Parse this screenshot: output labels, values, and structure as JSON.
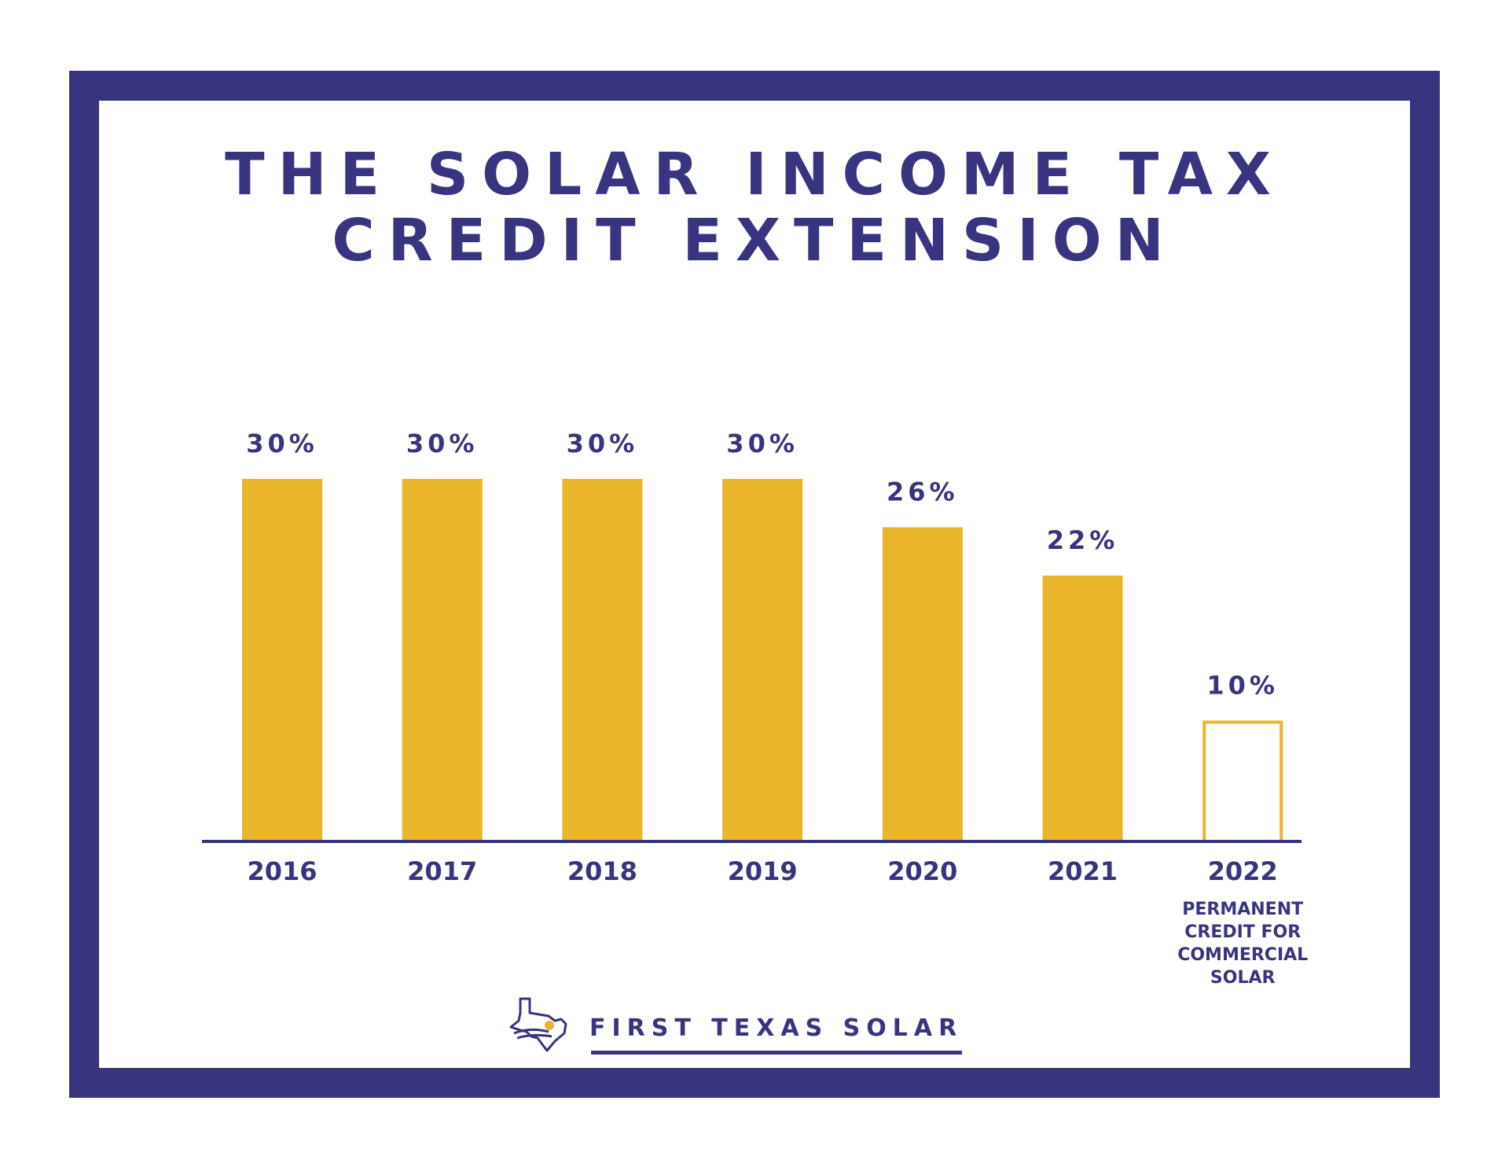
{
  "title_line1": "THE SOLAR INCOME TAX",
  "title_line2": "CREDIT EXTENSION",
  "brand": {
    "name": "FIRST TEXAS SOLAR",
    "icon": "texas-sun-logo-icon"
  },
  "colors": {
    "navy": "#38347f",
    "gold": "#eab42b",
    "white": "#ffffff"
  },
  "chart_data": {
    "type": "bar",
    "title": "THE SOLAR INCOME TAX CREDIT EXTENSION",
    "categories": [
      "2016",
      "2017",
      "2018",
      "2019",
      "2020",
      "2021",
      "2022"
    ],
    "values": [
      30,
      30,
      30,
      30,
      26,
      22,
      10
    ],
    "value_labels": [
      "30%",
      "30%",
      "30%",
      "30%",
      "26%",
      "22%",
      "10%"
    ],
    "outlined_categories": [
      "2022"
    ],
    "annotations": [
      {
        "category": "2022",
        "lines": [
          "PERMANENT",
          "CREDIT FOR",
          "COMMERCIAL",
          "SOLAR"
        ]
      }
    ],
    "ylim": [
      0,
      30
    ],
    "grid": false,
    "xlabel": "",
    "ylabel": ""
  }
}
